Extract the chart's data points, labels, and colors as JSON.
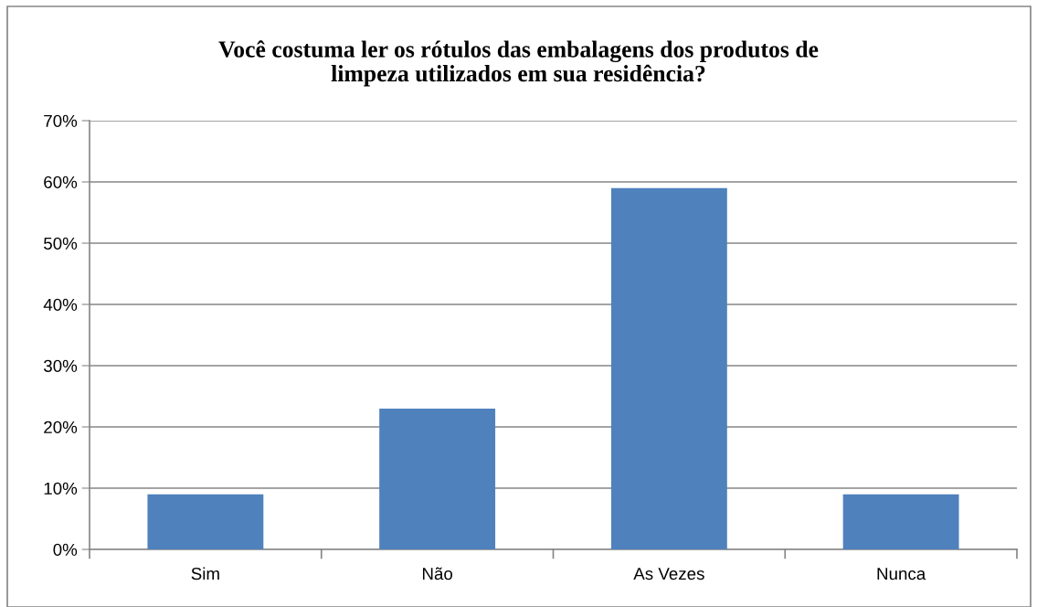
{
  "chart_data": {
    "type": "bar",
    "title": "Você costuma ler os rótulos das embalagens dos produtos de\nlimpeza utilizados em sua residência?",
    "categories": [
      "Sim",
      "Não",
      "As Vezes",
      "Nunca"
    ],
    "values": [
      9,
      23,
      59,
      9
    ],
    "color": "#4f81bd",
    "ylim": [
      0,
      70
    ],
    "yticks": [
      {
        "value": 0,
        "label": "0%"
      },
      {
        "value": 10,
        "label": "10%"
      },
      {
        "value": 20,
        "label": "20%"
      },
      {
        "value": 30,
        "label": "30%"
      },
      {
        "value": 40,
        "label": "40%"
      },
      {
        "value": 50,
        "label": "50%"
      },
      {
        "value": 60,
        "label": "60%"
      },
      {
        "value": 70,
        "label": "70%"
      }
    ],
    "grid": "y",
    "legend": false
  }
}
